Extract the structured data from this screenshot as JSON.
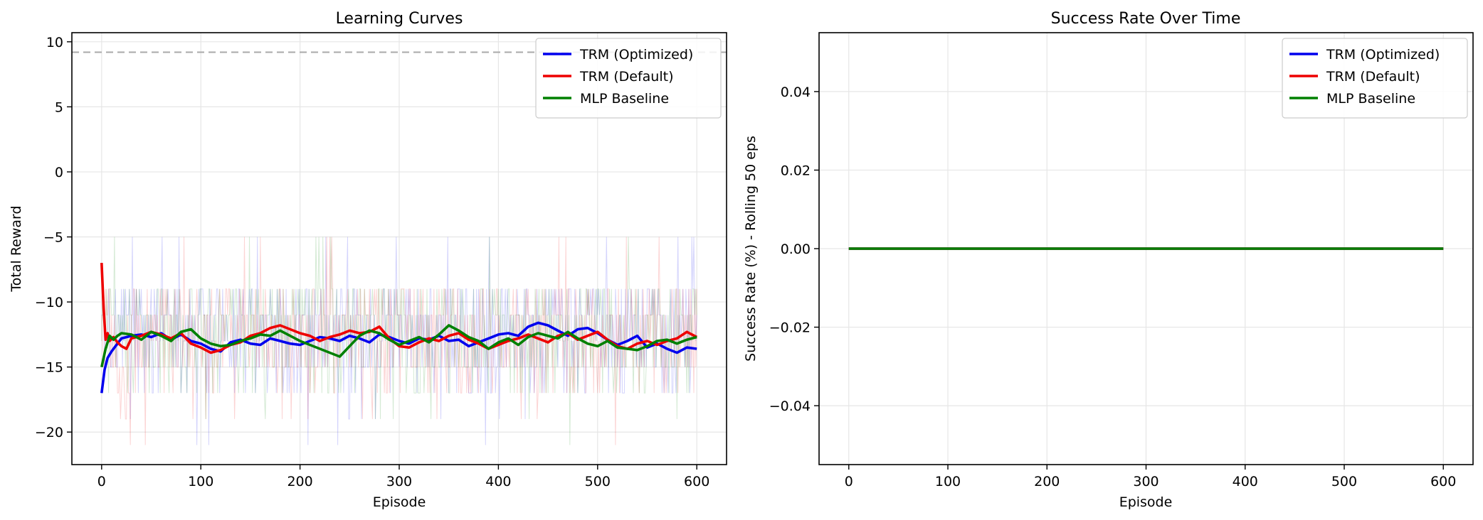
{
  "figure": {
    "background": "#ffffff"
  },
  "colors": {
    "trm_optimized": "#0000ee",
    "trm_default": "#ee0000",
    "mlp_baseline": "#008000",
    "target_line": "#aaaaaa",
    "grid": "#e6e6e6"
  },
  "chart_data": [
    {
      "type": "line",
      "title": "Learning Curves",
      "xlabel": "Episode",
      "ylabel": "Total Reward",
      "xlim": [
        -30,
        630
      ],
      "ylim": [
        -22.5,
        10.7
      ],
      "xticks": [
        0,
        100,
        200,
        300,
        400,
        500,
        600
      ],
      "yticks": [
        10,
        5,
        0,
        -5,
        -10,
        -15,
        -20
      ],
      "ytick_labels": [
        "10",
        "5",
        "0",
        "−5",
        "−10",
        "−15",
        "−20"
      ],
      "grid": true,
      "legend_position": "top-right",
      "reference_line": {
        "y": 9.2,
        "style": "dashed",
        "color": "#aaaaaa"
      },
      "raw_episode_rewards": {
        "x_range": [
          0,
          600
        ],
        "note_shown": "faint per-episode traces behind smoothed curves",
        "typical_range": [
          -17,
          -9
        ],
        "extremes": [
          -21,
          -5
        ]
      },
      "series": [
        {
          "name": "TRM (Optimized)",
          "color": "#0000ee",
          "x": [
            0,
            3,
            6,
            10,
            15,
            20,
            30,
            40,
            50,
            60,
            70,
            80,
            90,
            100,
            110,
            120,
            130,
            140,
            150,
            160,
            170,
            180,
            190,
            200,
            210,
            220,
            230,
            240,
            250,
            260,
            270,
            280,
            290,
            300,
            310,
            320,
            330,
            340,
            350,
            360,
            370,
            380,
            390,
            400,
            410,
            420,
            430,
            440,
            450,
            460,
            470,
            480,
            490,
            500,
            510,
            520,
            530,
            540,
            550,
            560,
            570,
            580,
            590,
            600
          ],
          "y": [
            -17,
            -15.2,
            -14.3,
            -13.8,
            -13.3,
            -12.8,
            -12.6,
            -12.5,
            -12.7,
            -12.4,
            -12.9,
            -12.5,
            -13.0,
            -13.2,
            -13.6,
            -13.8,
            -13.1,
            -12.9,
            -13.2,
            -13.3,
            -12.8,
            -13.0,
            -13.2,
            -13.3,
            -13.0,
            -12.7,
            -12.8,
            -13.0,
            -12.6,
            -12.8,
            -13.1,
            -12.5,
            -12.7,
            -13.0,
            -13.2,
            -12.8,
            -12.9,
            -12.6,
            -13.0,
            -12.9,
            -13.4,
            -13.1,
            -12.8,
            -12.5,
            -12.4,
            -12.6,
            -11.9,
            -11.6,
            -11.8,
            -12.2,
            -12.6,
            -12.1,
            -12.0,
            -12.4,
            -12.9,
            -13.3,
            -13.0,
            -12.6,
            -13.5,
            -13.2,
            -13.6,
            -13.9,
            -13.5,
            -13.6
          ]
        },
        {
          "name": "TRM (Default)",
          "color": "#ee0000",
          "x": [
            0,
            2,
            4,
            6,
            8,
            12,
            16,
            20,
            25,
            30,
            40,
            50,
            60,
            70,
            80,
            90,
            100,
            110,
            120,
            130,
            140,
            150,
            160,
            170,
            180,
            190,
            200,
            210,
            220,
            230,
            240,
            250,
            260,
            270,
            280,
            290,
            300,
            310,
            320,
            330,
            340,
            350,
            360,
            370,
            380,
            390,
            400,
            410,
            420,
            430,
            440,
            450,
            460,
            470,
            480,
            490,
            500,
            510,
            520,
            530,
            540,
            550,
            560,
            570,
            580,
            590,
            600
          ],
          "y": [
            -7,
            -10.5,
            -12.9,
            -12.4,
            -13.0,
            -12.7,
            -13.1,
            -13.4,
            -13.6,
            -12.8,
            -12.6,
            -12.3,
            -12.5,
            -12.8,
            -12.4,
            -13.2,
            -13.5,
            -13.9,
            -13.7,
            -13.3,
            -13.1,
            -12.6,
            -12.4,
            -12.0,
            -11.8,
            -12.1,
            -12.4,
            -12.6,
            -13.0,
            -12.7,
            -12.5,
            -12.2,
            -12.4,
            -12.3,
            -11.9,
            -12.8,
            -13.4,
            -13.5,
            -13.1,
            -12.8,
            -13.0,
            -12.6,
            -12.4,
            -12.9,
            -13.2,
            -13.6,
            -13.3,
            -13.0,
            -12.8,
            -12.5,
            -12.8,
            -13.1,
            -12.6,
            -12.4,
            -12.9,
            -12.6,
            -12.3,
            -12.9,
            -13.4,
            -13.6,
            -13.2,
            -13.0,
            -13.3,
            -13.0,
            -12.8,
            -12.3,
            -12.7
          ]
        },
        {
          "name": "MLP Baseline",
          "color": "#008000",
          "x": [
            0,
            4,
            8,
            12,
            16,
            20,
            30,
            40,
            50,
            60,
            70,
            80,
            90,
            100,
            110,
            120,
            130,
            140,
            150,
            160,
            170,
            180,
            190,
            200,
            210,
            220,
            230,
            240,
            250,
            260,
            270,
            280,
            290,
            300,
            310,
            320,
            330,
            340,
            350,
            360,
            370,
            380,
            390,
            400,
            410,
            420,
            430,
            440,
            450,
            460,
            470,
            480,
            490,
            500,
            510,
            520,
            530,
            540,
            550,
            560,
            570,
            580,
            590,
            600
          ],
          "y": [
            -15,
            -13.6,
            -12.6,
            -12.9,
            -12.6,
            -12.4,
            -12.5,
            -12.9,
            -12.3,
            -12.6,
            -13.0,
            -12.3,
            -12.1,
            -12.8,
            -13.2,
            -13.4,
            -13.3,
            -13.0,
            -12.8,
            -12.5,
            -12.6,
            -12.2,
            -12.6,
            -13.0,
            -13.3,
            -13.6,
            -13.9,
            -14.2,
            -13.4,
            -12.6,
            -12.2,
            -12.4,
            -12.9,
            -13.3,
            -13.0,
            -12.7,
            -13.1,
            -12.5,
            -11.8,
            -12.2,
            -12.7,
            -13.0,
            -13.6,
            -13.1,
            -12.8,
            -13.3,
            -12.7,
            -12.4,
            -12.6,
            -12.8,
            -12.3,
            -12.8,
            -13.2,
            -13.4,
            -13.0,
            -13.5,
            -13.6,
            -13.7,
            -13.4,
            -13.0,
            -12.9,
            -13.2,
            -12.9,
            -12.7
          ]
        }
      ]
    },
    {
      "type": "line",
      "title": "Success Rate Over Time",
      "xlabel": "Episode",
      "ylabel": "Success Rate (%) - Rolling 50 eps",
      "xlim": [
        -30,
        630
      ],
      "ylim": [
        -0.055,
        0.055
      ],
      "xticks": [
        0,
        100,
        200,
        300,
        400,
        500,
        600
      ],
      "yticks": [
        0.04,
        0.02,
        0.0,
        -0.02,
        -0.04
      ],
      "ytick_labels": [
        "0.04",
        "0.02",
        "0.00",
        "−0.02",
        "−0.04"
      ],
      "grid": true,
      "legend_position": "top-right",
      "series": [
        {
          "name": "TRM (Optimized)",
          "color": "#0000ee",
          "x": [
            0,
            600
          ],
          "y": [
            0,
            0
          ]
        },
        {
          "name": "TRM (Default)",
          "color": "#ee0000",
          "x": [
            0,
            600
          ],
          "y": [
            0,
            0
          ]
        },
        {
          "name": "MLP Baseline",
          "color": "#008000",
          "x": [
            0,
            600
          ],
          "y": [
            0,
            0
          ]
        }
      ]
    }
  ]
}
